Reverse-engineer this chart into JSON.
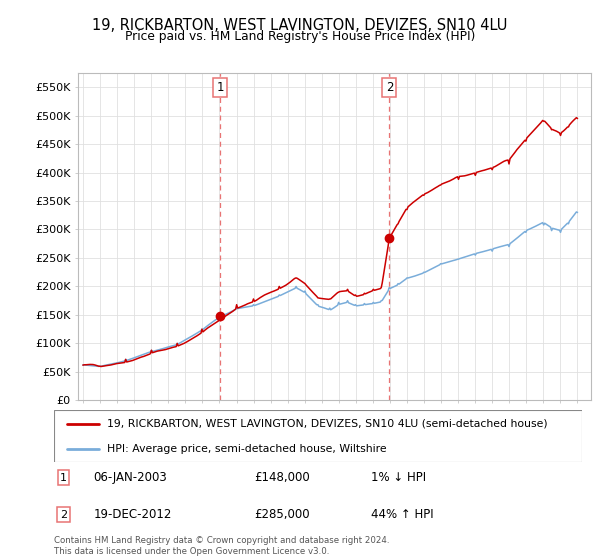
{
  "title": "19, RICKBARTON, WEST LAVINGTON, DEVIZES, SN10 4LU",
  "subtitle": "Price paid vs. HM Land Registry's House Price Index (HPI)",
  "ylabel_ticks": [
    "£0",
    "£50K",
    "£100K",
    "£150K",
    "£200K",
    "£250K",
    "£300K",
    "£350K",
    "£400K",
    "£450K",
    "£500K",
    "£550K"
  ],
  "ytick_values": [
    0,
    50000,
    100000,
    150000,
    200000,
    250000,
    300000,
    350000,
    400000,
    450000,
    500000,
    550000
  ],
  "ylim": [
    0,
    575000
  ],
  "legend_line1": "19, RICKBARTON, WEST LAVINGTON, DEVIZES, SN10 4LU (semi-detached house)",
  "legend_line2": "HPI: Average price, semi-detached house, Wiltshire",
  "sale1_date": "06-JAN-2003",
  "sale1_price": "£148,000",
  "sale1_hpi": "1% ↓ HPI",
  "sale2_date": "19-DEC-2012",
  "sale2_price": "£285,000",
  "sale2_hpi": "44% ↑ HPI",
  "footnote": "Contains HM Land Registry data © Crown copyright and database right 2024.\nThis data is licensed under the Open Government Licence v3.0.",
  "sale1_year": 2003.04,
  "sale2_year": 2012.97,
  "sale1_price_val": 148000,
  "sale2_price_val": 285000,
  "line_color_red": "#cc0000",
  "line_color_blue": "#7aadda",
  "vline_color": "#e87474",
  "background_color": "#ffffff",
  "grid_color": "#e0e0e0"
}
